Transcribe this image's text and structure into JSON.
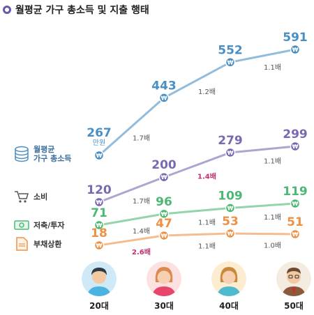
{
  "title": "월평균 가구 총소득 및 지출 행태",
  "legend": {
    "income": "월평균\n가구 총소득",
    "consumption": "소비",
    "saving": "저축/투자",
    "debt": "부채상환"
  },
  "income_unit": "만원",
  "ages": [
    "20대",
    "30대",
    "40대",
    "50대"
  ],
  "icons": [
    "coin-stack-icon",
    "shopping-cart-icon",
    "money-bill-icon",
    "debt-document-icon"
  ],
  "colors": {
    "income": "#4a8fc4",
    "consumption": "#7a68b0",
    "saving": "#4cb873",
    "debt": "#ee9145",
    "highlight": "#c0306e"
  },
  "chart_data": {
    "type": "line",
    "title": "월평균 가구 총소득 및 지출 행태",
    "categories": [
      "20대",
      "30대",
      "40대",
      "50대"
    ],
    "series": [
      {
        "name": "월평균 가구 총소득",
        "values": [
          267,
          443,
          552,
          591
        ],
        "ratios": [
          "1.7배",
          "1.2배",
          "1.1배"
        ],
        "highlight": [
          false,
          false,
          false
        ]
      },
      {
        "name": "소비",
        "values": [
          120,
          200,
          279,
          299
        ],
        "ratios": [
          "1.7배",
          "1.4배",
          "1.1배"
        ],
        "highlight": [
          false,
          true,
          false
        ]
      },
      {
        "name": "저축/투자",
        "values": [
          71,
          96,
          109,
          119
        ],
        "ratios": [
          "1.4배",
          "1.1배",
          "1.1배"
        ],
        "highlight": [
          false,
          false,
          false
        ]
      },
      {
        "name": "부채상환",
        "values": [
          18,
          47,
          53,
          51
        ],
        "ratios": [
          "2.6배",
          "1.1배",
          "1.0배"
        ],
        "highlight": [
          true,
          false,
          false
        ]
      }
    ]
  }
}
